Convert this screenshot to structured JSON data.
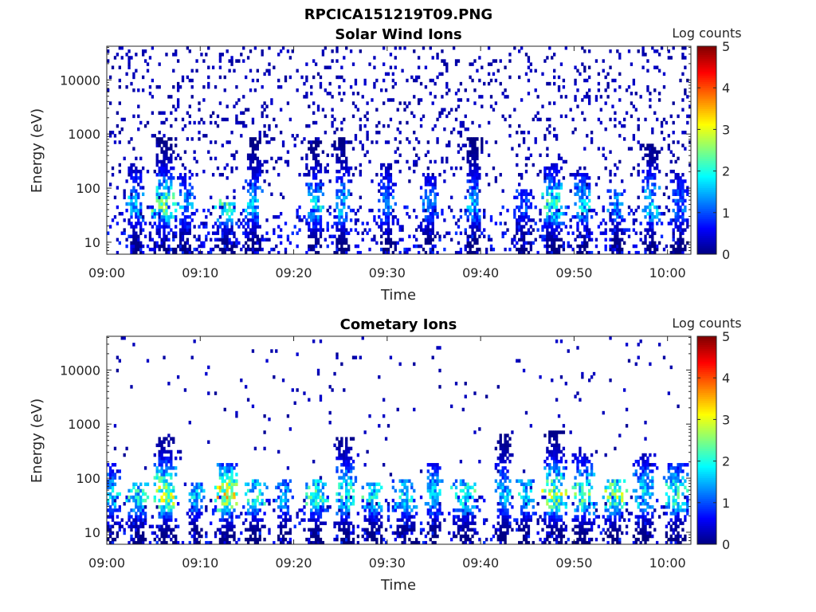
{
  "figure": {
    "title": "RPCICA151219T09.PNG"
  },
  "chart_data": [
    {
      "type": "heatmap",
      "title": "Solar Wind Ions",
      "xlabel": "Time",
      "ylabel": "Energy (eV)",
      "x_tick_labels": [
        "09:00",
        "09:10",
        "09:20",
        "09:30",
        "09:40",
        "09:50",
        "10:00"
      ],
      "x_tick_minutes": [
        0,
        10,
        20,
        30,
        40,
        50,
        60
      ],
      "xlim_minutes": [
        0,
        62.5
      ],
      "y_scale": "log",
      "y_tick_labels": [
        "10",
        "100",
        "1000",
        "10000"
      ],
      "y_tick_values": [
        10,
        100,
        1000,
        10000
      ],
      "ylim": [
        6,
        42000
      ],
      "colorbar": {
        "label": "Log counts",
        "range": [
          0,
          5
        ],
        "tick_labels": [
          "0",
          "1",
          "2",
          "3",
          "4",
          "5"
        ],
        "colormap": "jet"
      },
      "bursts": [
        {
          "t": 3.0,
          "emin": 10,
          "emax": 300,
          "peak": 1.8
        },
        {
          "t": 6.2,
          "emin": 10,
          "emax": 900,
          "peak": 2.6
        },
        {
          "t": 8.5,
          "emin": 10,
          "emax": 200,
          "peak": 1.6
        },
        {
          "t": 12.8,
          "emin": 10,
          "emax": 60,
          "peak": 2.5
        },
        {
          "t": 15.7,
          "emin": 10,
          "emax": 900,
          "peak": 1.8
        },
        {
          "t": 22.3,
          "emin": 10,
          "emax": 800,
          "peak": 2.0
        },
        {
          "t": 25.2,
          "emin": 10,
          "emax": 900,
          "peak": 1.9
        },
        {
          "t": 30.0,
          "emin": 10,
          "emax": 300,
          "peak": 1.5
        },
        {
          "t": 34.5,
          "emin": 10,
          "emax": 200,
          "peak": 1.4
        },
        {
          "t": 39.3,
          "emin": 10,
          "emax": 900,
          "peak": 1.7
        },
        {
          "t": 44.5,
          "emin": 10,
          "emax": 100,
          "peak": 1.2
        },
        {
          "t": 47.8,
          "emin": 10,
          "emax": 300,
          "peak": 2.4
        },
        {
          "t": 51.0,
          "emin": 10,
          "emax": 200,
          "peak": 1.9
        },
        {
          "t": 54.5,
          "emin": 10,
          "emax": 100,
          "peak": 1.6
        },
        {
          "t": 58.2,
          "emin": 10,
          "emax": 700,
          "peak": 2.0
        },
        {
          "t": 61.3,
          "emin": 10,
          "emax": 200,
          "peak": 1.3
        }
      ]
    },
    {
      "type": "heatmap",
      "title": "Cometary Ions",
      "xlabel": "Time",
      "ylabel": "Energy (eV)",
      "x_tick_labels": [
        "09:00",
        "09:10",
        "09:20",
        "09:30",
        "09:40",
        "09:50",
        "10:00"
      ],
      "x_tick_minutes": [
        0,
        10,
        20,
        30,
        40,
        50,
        60
      ],
      "xlim_minutes": [
        0,
        62.5
      ],
      "y_scale": "log",
      "y_tick_labels": [
        "10",
        "100",
        "1000",
        "10000"
      ],
      "y_tick_values": [
        10,
        100,
        1000,
        10000
      ],
      "ylim": [
        6,
        42000
      ],
      "colorbar": {
        "label": "Log counts",
        "range": [
          0,
          5
        ],
        "tick_labels": [
          "0",
          "1",
          "2",
          "3",
          "4",
          "5"
        ],
        "colormap": "jet"
      },
      "bursts": [
        {
          "t": 0.5,
          "emin": 10,
          "emax": 200,
          "peak": 1.9
        },
        {
          "t": 3.2,
          "emin": 10,
          "emax": 80,
          "peak": 2.2
        },
        {
          "t": 6.3,
          "emin": 10,
          "emax": 600,
          "peak": 3.2
        },
        {
          "t": 9.5,
          "emin": 10,
          "emax": 80,
          "peak": 1.9
        },
        {
          "t": 12.8,
          "emin": 10,
          "emax": 200,
          "peak": 3.5
        },
        {
          "t": 15.8,
          "emin": 10,
          "emax": 100,
          "peak": 2.3
        },
        {
          "t": 19.0,
          "emin": 10,
          "emax": 100,
          "peak": 1.8
        },
        {
          "t": 22.4,
          "emin": 10,
          "emax": 100,
          "peak": 2.4
        },
        {
          "t": 25.6,
          "emin": 10,
          "emax": 600,
          "peak": 2.5
        },
        {
          "t": 28.6,
          "emin": 10,
          "emax": 80,
          "peak": 2.2
        },
        {
          "t": 31.8,
          "emin": 10,
          "emax": 100,
          "peak": 2.1
        },
        {
          "t": 35.0,
          "emin": 10,
          "emax": 200,
          "peak": 2.0
        },
        {
          "t": 38.2,
          "emin": 10,
          "emax": 100,
          "peak": 2.4
        },
        {
          "t": 42.5,
          "emin": 10,
          "emax": 700,
          "peak": 1.9
        },
        {
          "t": 44.8,
          "emin": 10,
          "emax": 100,
          "peak": 2.0
        },
        {
          "t": 48.0,
          "emin": 10,
          "emax": 800,
          "peak": 3.0
        },
        {
          "t": 51.0,
          "emin": 10,
          "emax": 300,
          "peak": 2.6
        },
        {
          "t": 54.3,
          "emin": 10,
          "emax": 100,
          "peak": 2.8
        },
        {
          "t": 57.5,
          "emin": 10,
          "emax": 300,
          "peak": 2.2
        },
        {
          "t": 61.0,
          "emin": 10,
          "emax": 200,
          "peak": 2.4
        }
      ]
    }
  ]
}
